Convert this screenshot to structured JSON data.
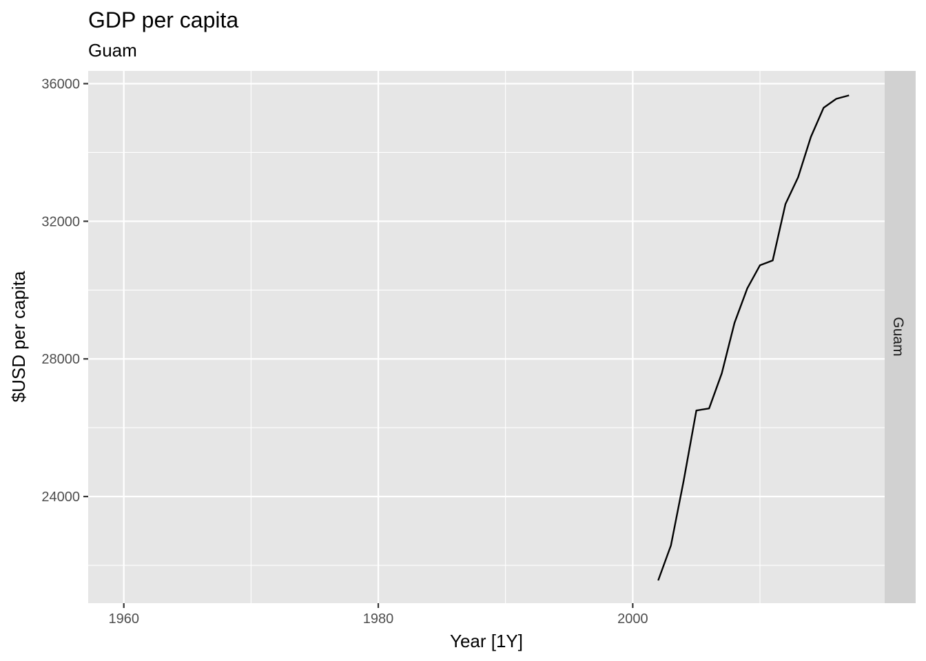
{
  "chart_data": {
    "type": "line",
    "title": "GDP per capita",
    "subtitle": "Guam",
    "xlabel": "Year [1Y]",
    "ylabel": "$USD per capita",
    "facet_label": "Guam",
    "xlim": [
      1957.2,
      2019.8
    ],
    "ylim": [
      20900,
      36370
    ],
    "x_ticks": [
      1960,
      1980,
      2000
    ],
    "x_minor_ticks": [
      1970,
      1990,
      2010
    ],
    "y_ticks": [
      24000,
      28000,
      32000,
      36000
    ],
    "y_minor_ticks": [
      22000,
      26000,
      30000,
      34000
    ],
    "grid": true,
    "legend": "none",
    "colors": {
      "panel": "#e6e6e6",
      "strip": "#d1d1d1",
      "grid": "#ffffff",
      "line": "#000000"
    },
    "series": [
      {
        "x": [
          2002,
          2003,
          2004,
          2005,
          2006,
          2007,
          2008,
          2009,
          2010,
          2011,
          2012,
          2013,
          2014,
          2015,
          2016,
          2017
        ],
        "values": [
          21560,
          22580,
          24450,
          26500,
          26560,
          27580,
          29050,
          30050,
          30720,
          30860,
          32500,
          33280,
          34450,
          35300,
          35560,
          35660
        ]
      }
    ]
  }
}
